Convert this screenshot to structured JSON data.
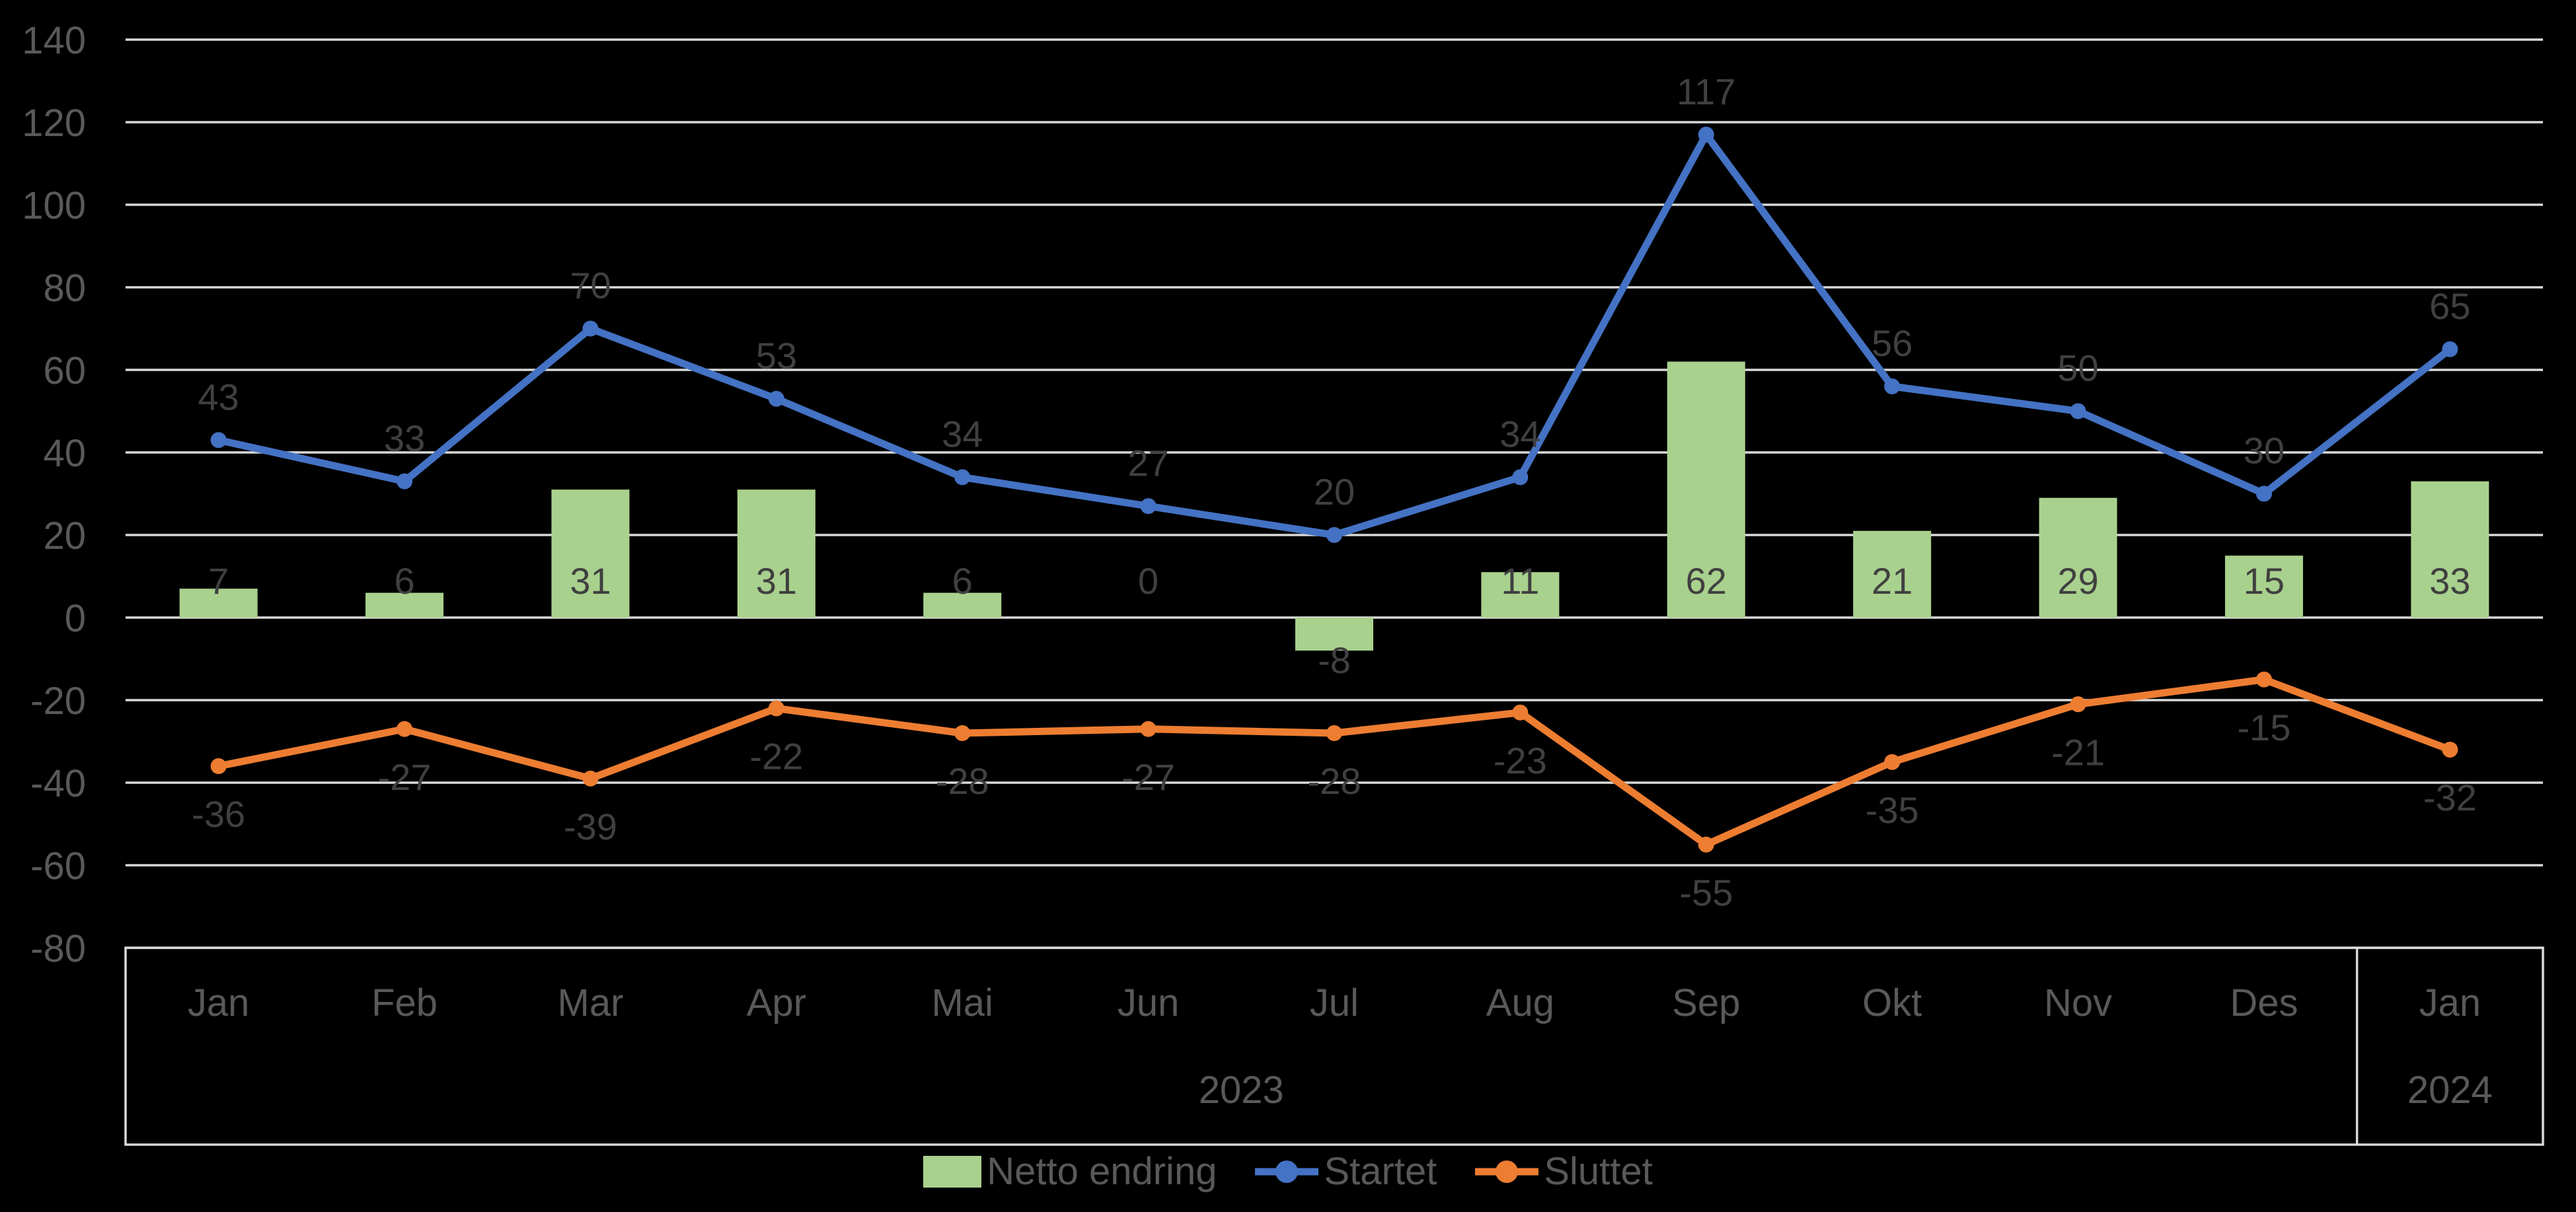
{
  "chart_data": {
    "type": "combo_bar_line",
    "title": "",
    "categories": [
      "Jan",
      "Feb",
      "Mar",
      "Apr",
      "Mai",
      "Jun",
      "Jul",
      "Aug",
      "Sep",
      "Okt",
      "Nov",
      "Des",
      "Jan"
    ],
    "category_groups": [
      {
        "label": "2023",
        "start": 0,
        "count": 12
      },
      {
        "label": "2024",
        "start": 12,
        "count": 1
      }
    ],
    "series": [
      {
        "name": "Netto endring",
        "type": "bar",
        "color": "#A9D18E",
        "label_position": "inside-base",
        "values": [
          7,
          6,
          31,
          31,
          6,
          0,
          -8,
          11,
          62,
          21,
          29,
          15,
          33
        ]
      },
      {
        "name": "Startet",
        "type": "line",
        "color": "#4472C4",
        "marker": "circle",
        "label_position": "above",
        "values": [
          43,
          33,
          70,
          53,
          34,
          27,
          20,
          34,
          117,
          56,
          50,
          30,
          65
        ]
      },
      {
        "name": "Sluttet",
        "type": "line",
        "color": "#ED7D31",
        "marker": "circle",
        "label_position": "below",
        "values": [
          -36,
          -27,
          -39,
          -22,
          -28,
          -27,
          -28,
          -23,
          -55,
          -35,
          -21,
          -15,
          -32
        ]
      }
    ],
    "ylim": [
      -80,
      140
    ],
    "ytick_step": 20,
    "yticks": [
      140,
      120,
      100,
      80,
      60,
      40,
      20,
      0,
      -20,
      -40,
      -60,
      -80
    ],
    "grid": true,
    "legend_position": "bottom",
    "background_color": "#000000",
    "gridline_color": "#D9D9D9",
    "axis_label_color": "#595959",
    "data_label_color": "#404040"
  }
}
